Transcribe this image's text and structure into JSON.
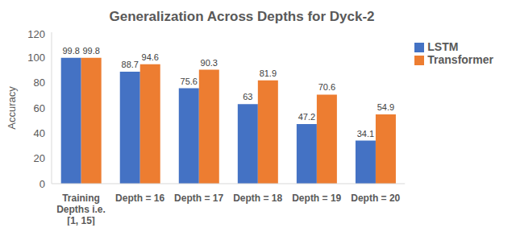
{
  "chart_data": {
    "type": "bar",
    "title": "Generalization Across Depths for Dyck-2",
    "y_label": "Accuracy",
    "categories": [
      "Training Depths i.e. [1, 15]",
      "Depth = 16",
      "Depth = 17",
      "Depth = 18",
      "Depth = 19",
      "Depth = 20"
    ],
    "series": [
      {
        "name": "LSTM",
        "color": "#4472c4",
        "values": [
          99.8,
          88.7,
          75.6,
          63,
          47.2,
          34.1
        ]
      },
      {
        "name": "Transformer",
        "color": "#ed7d31",
        "values": [
          99.8,
          94.6,
          90.3,
          81.9,
          70.6,
          54.9
        ]
      }
    ],
    "ylim": [
      0,
      120
    ],
    "yticks": [
      0,
      20,
      40,
      60,
      80,
      100,
      120
    ],
    "grid": false,
    "legend": "right",
    "data_labels": true
  }
}
